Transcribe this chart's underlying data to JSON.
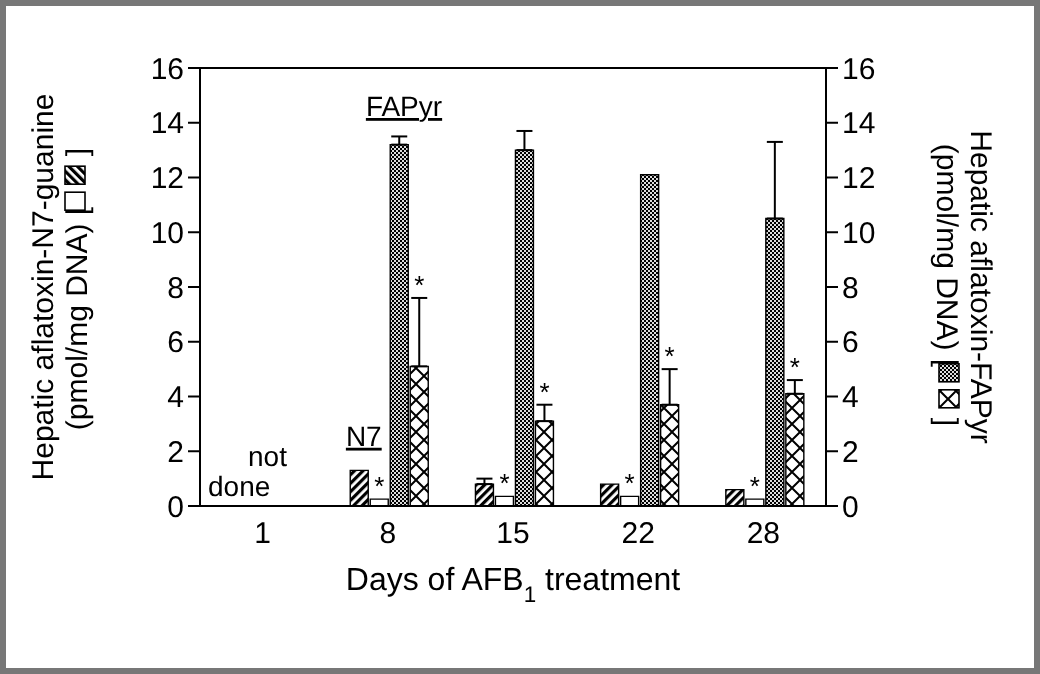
{
  "chart_data": {
    "type": "bar",
    "xlabel": "Days of AFB$_{1}$ treatment",
    "ylabel": "Hepatic aflatoxin-N7-guanine\n(pmol/mg DNA) [ ]",
    "y2label": "Hepatic aflatoxin-FAPyr\n(pmol/mg DNA) [ ]",
    "categories": [
      "1",
      "8",
      "15",
      "22",
      "28"
    ],
    "series": [
      {
        "color": "#000000",
        "values": [
          null,
          1.3,
          0.8,
          0.8,
          0.6
        ],
        "errors": [
          null,
          null,
          0.2,
          null,
          null
        ]
      },
      {
        "color": "#000000",
        "values": [
          null,
          0.25,
          0.35,
          0.35,
          0.25
        ],
        "value_labels": [
          null,
          "*",
          "*",
          "*",
          "*"
        ]
      },
      {
        "color": "#000000",
        "axis": "y2",
        "values": [
          null,
          13.2,
          13.0,
          12.1,
          10.5
        ],
        "errors": [
          null,
          0.3,
          0.7,
          null,
          2.8
        ]
      },
      {
        "color": "#000000",
        "axis": "y2",
        "values": [
          null,
          5.1,
          3.1,
          3.7,
          4.1
        ],
        "errors": [
          null,
          2.5,
          0.6,
          1.3,
          0.5
        ],
        "value_labels": [
          null,
          "*",
          "*",
          "*",
          "*"
        ]
      }
    ],
    "ylim": [
      0,
      16
    ],
    "yticks": [
      0,
      2,
      4,
      6,
      8,
      10,
      12,
      14,
      16
    ],
    "y2lim": [
      0,
      16
    ],
    "y2ticks": [
      0,
      2,
      4,
      6,
      8,
      10,
      12,
      14,
      16
    ],
    "annotations": [
      "not done",
      {
        "text": "N7",
        "x": "8",
        "y": 2.2
      },
      "FAPyr"
    ],
    "grid": false,
    "legend": false
  }
}
